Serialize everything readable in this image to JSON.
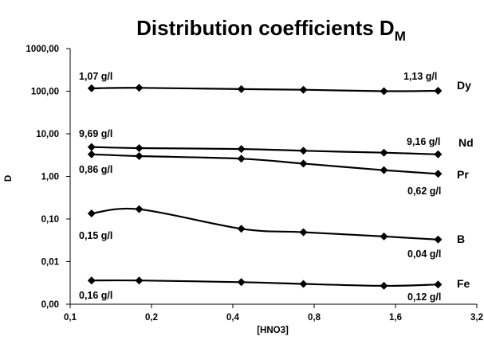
{
  "chart_data": {
    "type": "line",
    "title": "Distribution coefficients D",
    "title_subscript": "M",
    "xlabel": "[HNO3]",
    "ylabel": "D",
    "x_scale": "log",
    "y_scale": "log",
    "xlim": [
      0.1,
      3.2
    ],
    "ylim": [
      0.001,
      1000
    ],
    "x_ticks": [
      {
        "value": 0.1,
        "label": "0,1"
      },
      {
        "value": 0.2,
        "label": "0,2"
      },
      {
        "value": 0.4,
        "label": "0,4"
      },
      {
        "value": 0.8,
        "label": "0,8"
      },
      {
        "value": 1.6,
        "label": "1,6"
      },
      {
        "value": 3.2,
        "label": "3,2"
      }
    ],
    "y_ticks": [
      {
        "value": 0.001,
        "label": "0,00"
      },
      {
        "value": 0.01,
        "label": "0,01"
      },
      {
        "value": 0.1,
        "label": "0,10"
      },
      {
        "value": 1,
        "label": "1,00"
      },
      {
        "value": 10,
        "label": "10,00"
      },
      {
        "value": 100,
        "label": "100,00"
      },
      {
        "value": 1000,
        "label": "1000,00"
      }
    ],
    "grid": false,
    "line_color": "#000000",
    "marker": "diamond",
    "series": [
      {
        "name": "Dy",
        "x": [
          0.12,
          0.18,
          0.43,
          0.73,
          1.45,
          2.3
        ],
        "values": [
          117,
          120,
          112,
          108,
          100,
          102
        ]
      },
      {
        "name": "Nd",
        "x": [
          0.12,
          0.18,
          0.43,
          0.73,
          1.45,
          2.3
        ],
        "values": [
          4.9,
          4.6,
          4.4,
          4.0,
          3.6,
          3.3
        ]
      },
      {
        "name": "Pr",
        "x": [
          0.12,
          0.18,
          0.43,
          0.73,
          1.45,
          2.3
        ],
        "values": [
          3.3,
          3.0,
          2.6,
          2.0,
          1.4,
          1.15
        ]
      },
      {
        "name": "B",
        "x": [
          0.12,
          0.18,
          0.43,
          0.73,
          1.45,
          2.3
        ],
        "values": [
          0.135,
          0.17,
          0.059,
          0.049,
          0.039,
          0.033
        ]
      },
      {
        "name": "Fe",
        "x": [
          0.12,
          0.18,
          0.43,
          0.73,
          1.45,
          2.3
        ],
        "values": [
          0.0036,
          0.0036,
          0.0033,
          0.003,
          0.0027,
          0.0029
        ]
      }
    ],
    "annotations": [
      "1,07 g/l",
      "1,13 g/l",
      "9,69 g/l",
      "9,16 g/l",
      "0,86 g/l",
      "0,62 g/l",
      "0,15 g/l",
      "0,04 g/l",
      "0,16 g/l",
      "0,12 g/l"
    ]
  }
}
